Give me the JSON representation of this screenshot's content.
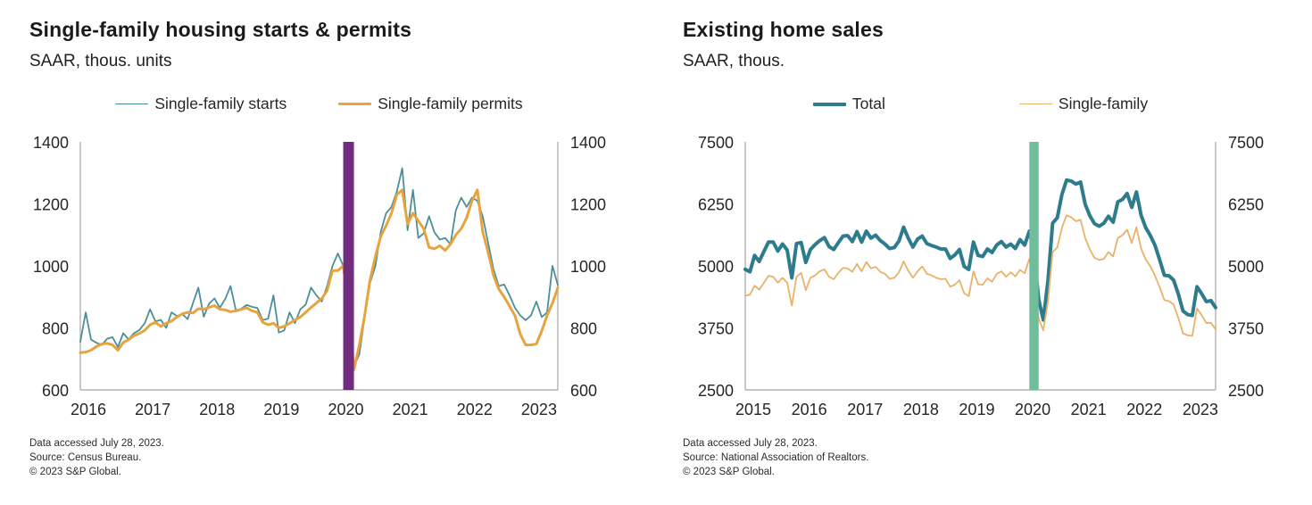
{
  "chart_data": [
    {
      "type": "line",
      "title": "Single-family housing starts & permits",
      "subtitle": "SAAR, thous. units",
      "x_start": "2016-01",
      "x_tick_years": [
        2016,
        2017,
        2018,
        2019,
        2020,
        2021,
        2022,
        2023
      ],
      "ylim": [
        600,
        1400
      ],
      "y_ticks": [
        600,
        800,
        1000,
        1200,
        1400
      ],
      "y_axis_sides": "both",
      "grid": false,
      "legend_position": "top-center",
      "recession_band": {
        "start": "2020-02",
        "end": "2020-04",
        "color": "#722d7f"
      },
      "series": [
        {
          "name": "Single-family starts",
          "color": "#4a8f9a",
          "width": 1.8,
          "values": [
            755,
            850,
            762,
            752,
            745,
            765,
            770,
            738,
            783,
            763,
            783,
            793,
            815,
            860,
            821,
            826,
            800,
            850,
            838,
            845,
            828,
            880,
            930,
            836,
            878,
            895,
            865,
            893,
            935,
            856,
            862,
            874,
            868,
            864,
            825,
            830,
            905,
            785,
            792,
            850,
            815,
            860,
            875,
            930,
            905,
            885,
            935,
            1000,
            1040,
            1000,
            870,
            675,
            715,
            835,
            945,
            1000,
            1110,
            1170,
            1190,
            1240,
            1315,
            1115,
            1245,
            1090,
            1105,
            1160,
            1108,
            1085,
            1090,
            1070,
            1180,
            1220,
            1190,
            1220,
            1210,
            1160,
            1075,
            990,
            935,
            940,
            905,
            865,
            840,
            825,
            840,
            885,
            835,
            850,
            1000,
            938
          ]
        },
        {
          "name": "Single-family permits",
          "color": "#e6a33e",
          "width": 3,
          "values": [
            720,
            722,
            728,
            740,
            748,
            750,
            745,
            728,
            753,
            762,
            775,
            782,
            792,
            810,
            818,
            805,
            815,
            822,
            835,
            845,
            850,
            848,
            862,
            860,
            866,
            872,
            860,
            858,
            852,
            855,
            860,
            865,
            855,
            850,
            818,
            810,
            815,
            800,
            805,
            815,
            825,
            835,
            850,
            866,
            880,
            895,
            920,
            985,
            985,
            1000,
            880,
            665,
            745,
            840,
            955,
            1030,
            1095,
            1130,
            1170,
            1230,
            1245,
            1135,
            1170,
            1145,
            1120,
            1060,
            1055,
            1065,
            1050,
            1070,
            1100,
            1120,
            1155,
            1210,
            1245,
            1110,
            1045,
            970,
            925,
            900,
            870,
            840,
            780,
            745,
            745,
            748,
            790,
            840,
            880,
            930
          ]
        }
      ],
      "footnotes": [
        "Data accessed July 28, 2023.",
        "Source: Census Bureau.",
        "© 2023 S&P Global."
      ]
    },
    {
      "type": "line",
      "title": "Existing home sales",
      "subtitle": "SAAR, thous.",
      "x_start": "2015-01",
      "x_tick_years": [
        2015,
        2016,
        2017,
        2018,
        2019,
        2020,
        2021,
        2022,
        2023
      ],
      "ylim": [
        2500,
        7500
      ],
      "y_ticks": [
        2500,
        3750,
        5000,
        6250,
        7500
      ],
      "y_axis_sides": "both",
      "grid": false,
      "legend_position": "top-center",
      "recession_band": {
        "start": "2020-02",
        "end": "2020-04",
        "color": "#6fbd9a"
      },
      "series": [
        {
          "name": "Total",
          "color": "#2d7c8e",
          "width": 4,
          "values": [
            4930,
            4880,
            5210,
            5090,
            5290,
            5480,
            5480,
            5300,
            5440,
            5320,
            4760,
            5450,
            5470,
            5070,
            5330,
            5430,
            5510,
            5570,
            5390,
            5330,
            5470,
            5600,
            5610,
            5490,
            5690,
            5480,
            5700,
            5560,
            5620,
            5510,
            5440,
            5350,
            5370,
            5500,
            5780,
            5560,
            5380,
            5540,
            5600,
            5450,
            5410,
            5380,
            5340,
            5340,
            5150,
            5220,
            5330,
            4990,
            4930,
            5480,
            5210,
            5190,
            5340,
            5270,
            5420,
            5490,
            5380,
            5440,
            5350,
            5530,
            5420,
            5700,
            5270,
            4330,
            3910,
            4700,
            5860,
            5970,
            6440,
            6730,
            6710,
            6650,
            6690,
            6240,
            6010,
            5850,
            5800,
            5860,
            6000,
            5880,
            6290,
            6340,
            6460,
            6180,
            6490,
            6020,
            5770,
            5610,
            5410,
            5120,
            4810,
            4800,
            4710,
            4430,
            4090,
            4020,
            4000,
            4580,
            4440,
            4280,
            4300,
            4160
          ]
        },
        {
          "name": "Single-family",
          "color": "#eab169",
          "width": 1.8,
          "values": [
            4400,
            4420,
            4600,
            4520,
            4660,
            4800,
            4780,
            4660,
            4760,
            4660,
            4200,
            4780,
            4860,
            4510,
            4760,
            4810,
            4890,
            4930,
            4780,
            4730,
            4860,
            4960,
            4950,
            4880,
            5040,
            4890,
            5080,
            4950,
            4980,
            4880,
            4840,
            4740,
            4760,
            4870,
            5090,
            4900,
            4760,
            4890,
            4990,
            4840,
            4810,
            4760,
            4730,
            4740,
            4580,
            4620,
            4710,
            4450,
            4390,
            4890,
            4630,
            4620,
            4750,
            4680,
            4840,
            4890,
            4780,
            4870,
            4790,
            4920,
            4850,
            5140,
            4740,
            3940,
            3700,
            4280,
            5280,
            5370,
            5770,
            6020,
            5980,
            5900,
            5930,
            5560,
            5330,
            5160,
            5120,
            5140,
            5280,
            5190,
            5560,
            5620,
            5730,
            5460,
            5780,
            5350,
            5130,
            4990,
            4800,
            4570,
            4310,
            4290,
            4220,
            3950,
            3640,
            3600,
            3590,
            4140,
            4010,
            3850,
            3850,
            3720
          ]
        }
      ],
      "footnotes": [
        "Data accessed July 28, 2023.",
        "Source: National Association of Realtors.",
        "© 2023 S&P Global."
      ]
    }
  ]
}
